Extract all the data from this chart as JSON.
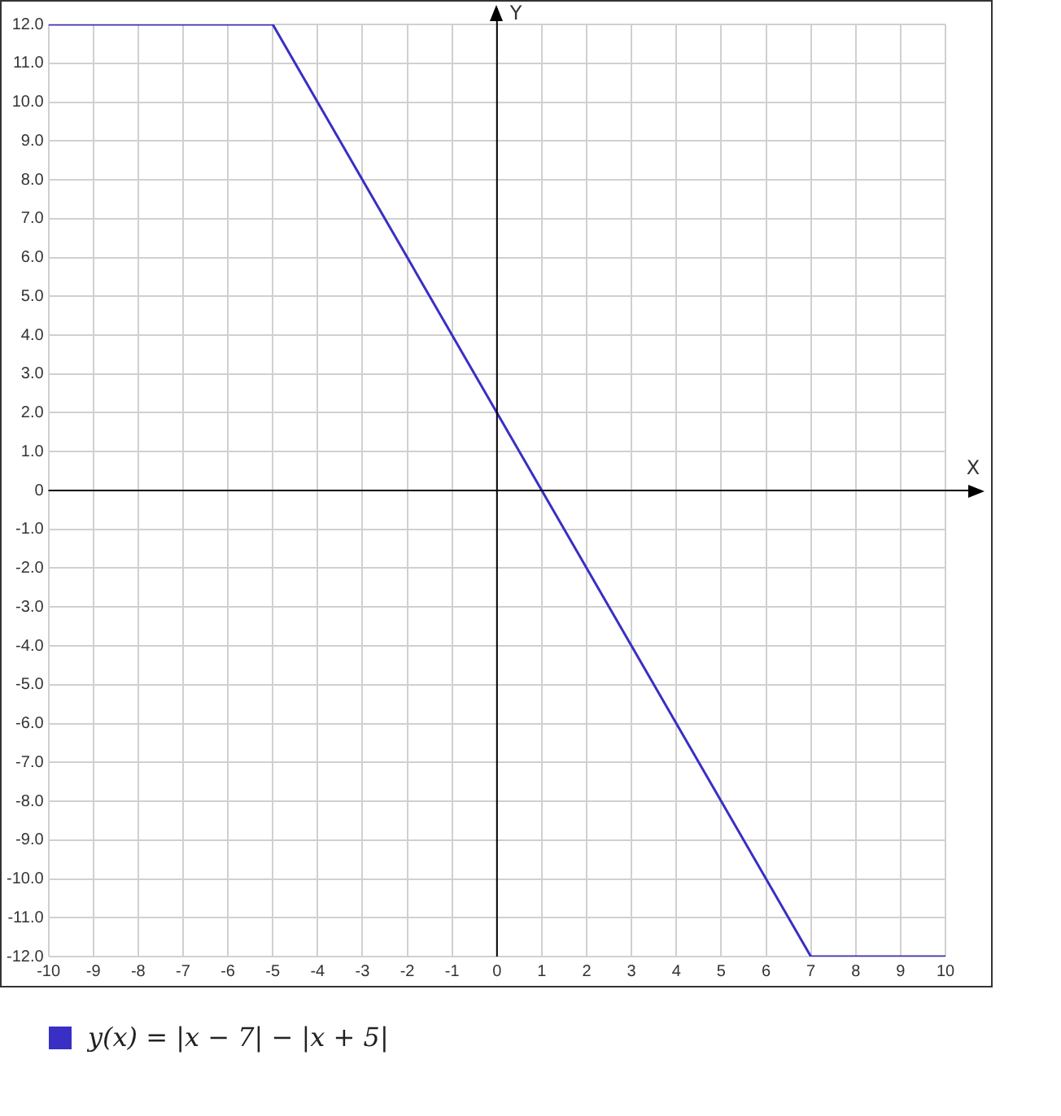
{
  "chart_data": {
    "type": "line",
    "xlabel": "X",
    "ylabel": "Y",
    "x": [
      -10,
      -5,
      7,
      10
    ],
    "series": [
      {
        "name": "y(x) = |x − 7| − |x + 5|",
        "color": "#3a2fc4",
        "values": [
          12,
          12,
          -12,
          -12
        ]
      }
    ],
    "xlim": [
      -10,
      10
    ],
    "xticks": [
      -10,
      -9,
      -8,
      -7,
      -6,
      -5,
      -4,
      -3,
      -2,
      -1,
      0,
      1,
      2,
      3,
      4,
      5,
      6,
      7,
      8,
      9,
      10
    ],
    "ylim": [
      -12,
      12
    ],
    "yticks": [
      {
        "value": -12,
        "label": "-12.0"
      },
      {
        "value": -11,
        "label": "-11.0"
      },
      {
        "value": -10,
        "label": "-10.0"
      },
      {
        "value": -9,
        "label": "-9.0"
      },
      {
        "value": -8,
        "label": "-8.0"
      },
      {
        "value": -7,
        "label": "-7.0"
      },
      {
        "value": -6,
        "label": "-6.0"
      },
      {
        "value": -5,
        "label": "-5.0"
      },
      {
        "value": -4,
        "label": "-4.0"
      },
      {
        "value": -3,
        "label": "-3.0"
      },
      {
        "value": -2,
        "label": "-2.0"
      },
      {
        "value": -1,
        "label": "-1.0"
      },
      0,
      {
        "value": 1,
        "label": "1.0"
      },
      {
        "value": 2,
        "label": "2.0"
      },
      {
        "value": 3,
        "label": "3.0"
      },
      {
        "value": 4,
        "label": "4.0"
      },
      {
        "value": 5,
        "label": "5.0"
      },
      {
        "value": 6,
        "label": "6.0"
      },
      {
        "value": 7,
        "label": "7.0"
      },
      {
        "value": 8,
        "label": "8.0"
      },
      {
        "value": 9,
        "label": "9.0"
      },
      {
        "value": 10,
        "label": "10.0"
      },
      {
        "value": 11,
        "label": "11.0"
      },
      {
        "value": 12,
        "label": "12.0"
      }
    ],
    "grid": true,
    "legend": "bottom left",
    "marker": "none",
    "line_style": "solid"
  }
}
